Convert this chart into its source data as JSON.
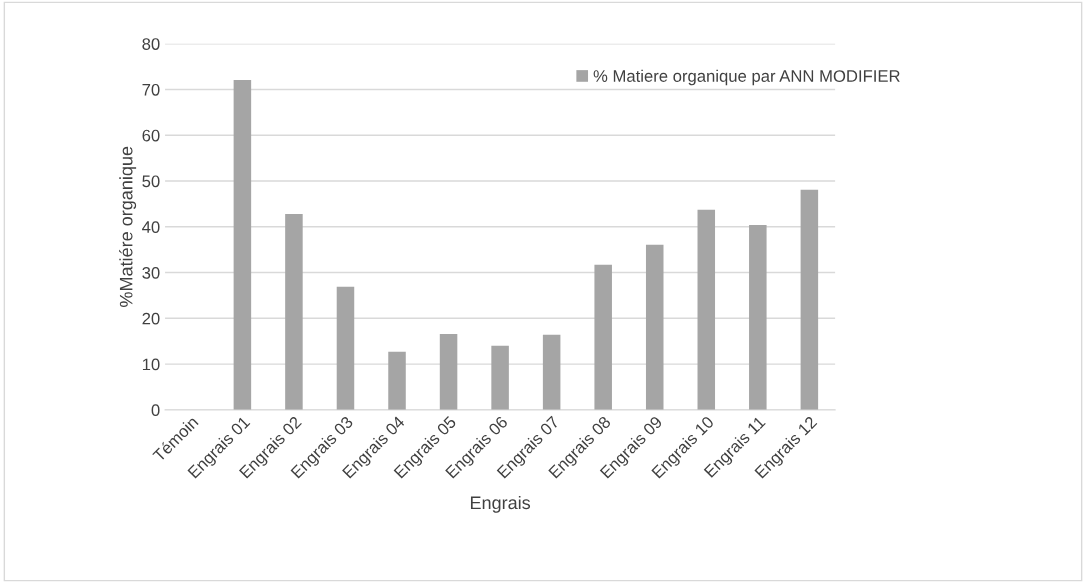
{
  "chart_data": {
    "type": "bar",
    "xlabel": "Engrais",
    "ylabel": "%Matiére organique",
    "categories": [
      "Témoin",
      "Engrais 01",
      "Engrais 02",
      "Engrais 03",
      "Engrais 04",
      "Engrais 05",
      "Engrais 06",
      "Engrais 07",
      "Engrais 08",
      "Engrais 09",
      "Engrais 10",
      "Engrais 11",
      "Engrais 12"
    ],
    "series": [
      {
        "name": "% Matiere organique par ANN MODIFIER",
        "color": "#a5a5a5",
        "values": [
          0,
          72.1,
          42.8,
          26.9,
          12.7,
          16.6,
          14.0,
          16.4,
          31.7,
          36.1,
          43.7,
          40.4,
          48.1
        ]
      }
    ],
    "ylim": [
      0,
      80
    ],
    "yticks": [
      0,
      10,
      20,
      30,
      40,
      50,
      60,
      70,
      80
    ],
    "grid": "y",
    "legend": "top right"
  }
}
